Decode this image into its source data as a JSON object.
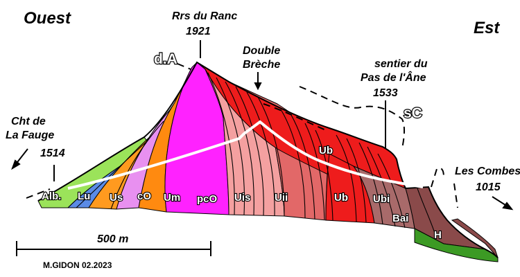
{
  "directions": {
    "west": "Ouest",
    "east": "Est"
  },
  "summit": {
    "name_line1": "Rrs du Ranc",
    "altitude": "1921"
  },
  "double_breche": {
    "line1": "Double",
    "line2": "Brèche"
  },
  "sentier": {
    "line1": "sentier du",
    "line2": "Pas de l'Âne",
    "altitude": "1533"
  },
  "fauge": {
    "line1": "Cht de",
    "line2": "La Fauge",
    "altitude": "1514"
  },
  "combes": {
    "line1": "Les Combes",
    "altitude": "1015"
  },
  "abbreviations": {
    "dA": "d.A",
    "sC": "sC"
  },
  "scale": {
    "label": "500 m"
  },
  "credit": "M.GIDON  02.2023",
  "units": [
    "Alb.",
    "Lu",
    "Us",
    "cO",
    "Um",
    "pcO",
    "Uis",
    "Uii",
    "Ub",
    "Ub",
    "Ubi",
    "Bai",
    "H"
  ],
  "colors": {
    "Alb": "#9be35a",
    "Lu": "#5b8be6",
    "Us": "#ff9a1f",
    "cO": "#e890f0",
    "Um": "#ff8a10",
    "pcO": "#ff22ff",
    "Uis": "#f4a0a0",
    "Uii": "#e26868",
    "Ub": "#ee1c1c",
    "Ubi": "#a86a6a",
    "Bai": "#8a4a4a",
    "H": "#3c9a24"
  }
}
